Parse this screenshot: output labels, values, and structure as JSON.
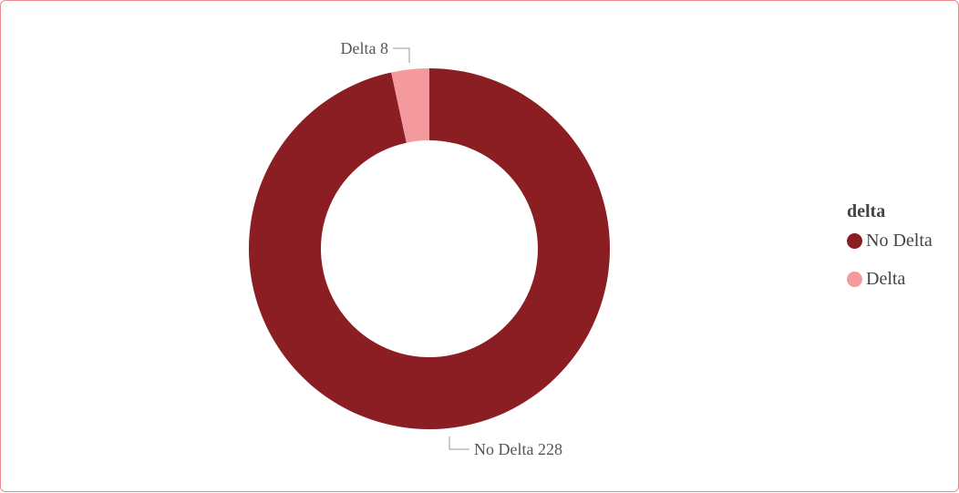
{
  "chart_data": {
    "type": "pie",
    "variant": "donut",
    "slices": [
      {
        "label": "No Delta",
        "value": 228,
        "color": "#8b1e22",
        "data_label": "No Delta 228"
      },
      {
        "label": "Delta",
        "value": 8,
        "color": "#f4999d",
        "data_label": "Delta 8"
      }
    ],
    "legend": {
      "title": "delta",
      "position": "right",
      "items": [
        "No Delta",
        "Delta"
      ]
    }
  },
  "colors": {
    "frame_border": "#e8898f",
    "leader_line": "#999999",
    "label_text": "#555555"
  }
}
